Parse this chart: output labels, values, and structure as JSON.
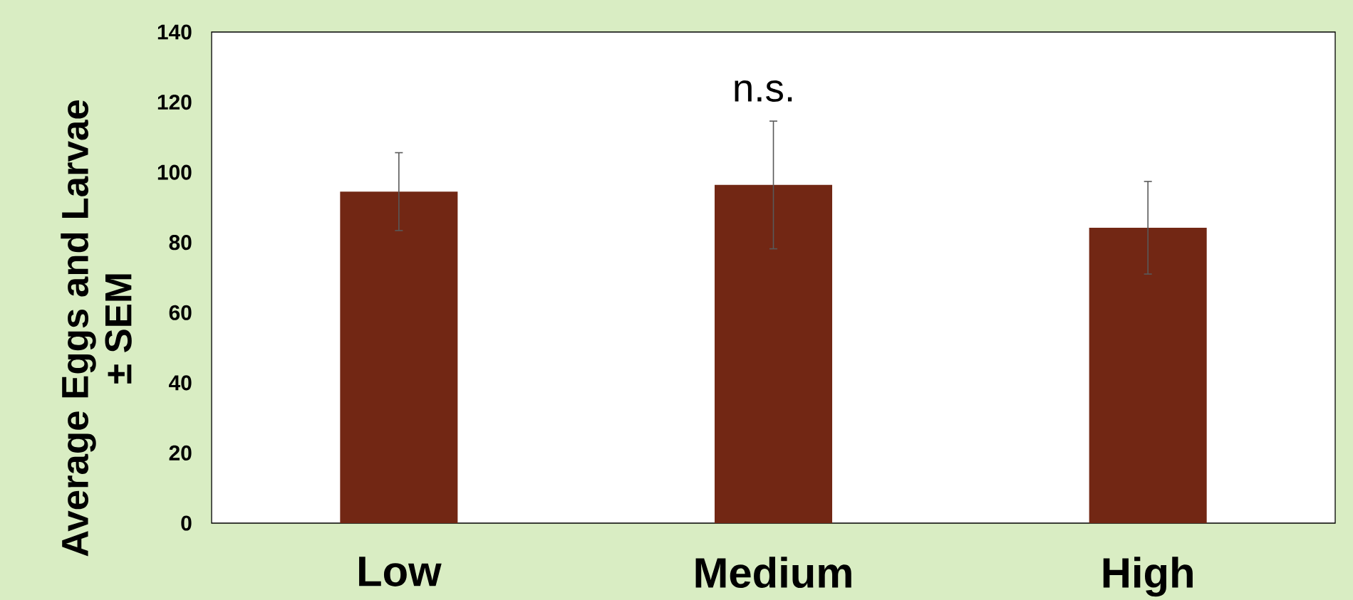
{
  "chart_data": {
    "type": "bar",
    "ylabel": "Average Eggs and Larvae ± SEM",
    "categories": [
      "Low",
      "Medium",
      "High"
    ],
    "values": [
      94.5,
      96.4,
      84.2
    ],
    "errors": [
      11.1,
      18.2,
      13.2
    ],
    "color": "#722714",
    "ylim": [
      0,
      140
    ],
    "yticks": [
      0,
      20,
      40,
      60,
      80,
      100,
      120,
      140
    ],
    "annotations": [
      "n.s."
    ]
  }
}
